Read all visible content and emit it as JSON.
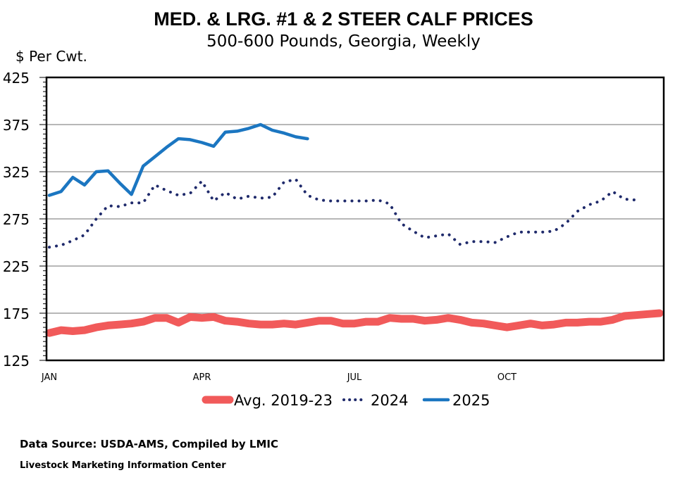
{
  "chart_data": {
    "type": "line",
    "title": "MED. & LRG. #1 & 2 STEER CALF PRICES",
    "subtitle": "500-600 Pounds, Georgia, Weekly",
    "ylabel": "$ Per Cwt.",
    "ylim": [
      125,
      425
    ],
    "yticks": [
      125,
      175,
      225,
      275,
      325,
      375,
      425
    ],
    "xlim": [
      1,
      53
    ],
    "xticks": [
      {
        "label": "JAN",
        "week": 1
      },
      {
        "label": "APR",
        "week": 14
      },
      {
        "label": "JUL",
        "week": 27
      },
      {
        "label": "OCT",
        "week": 40
      }
    ],
    "grid": true,
    "legend": "bottom",
    "series": [
      {
        "name": "Avg. 2019-23",
        "style": "thick-solid",
        "color": "#F15A5A",
        "x": [
          1,
          2,
          3,
          4,
          5,
          6,
          7,
          8,
          9,
          10,
          11,
          12,
          13,
          14,
          15,
          16,
          17,
          18,
          19,
          20,
          21,
          22,
          23,
          24,
          25,
          26,
          27,
          28,
          29,
          30,
          31,
          32,
          33,
          34,
          35,
          36,
          37,
          38,
          39,
          40,
          41,
          42,
          43,
          44,
          45,
          46,
          47,
          48,
          49,
          50,
          51,
          52,
          53
        ],
        "values": [
          154,
          157,
          156,
          157,
          160,
          162,
          163,
          164,
          166,
          170,
          170,
          165,
          171,
          170,
          171,
          167,
          166,
          164,
          163,
          163,
          164,
          163,
          165,
          167,
          167,
          164,
          164,
          166,
          166,
          170,
          169,
          169,
          167,
          168,
          170,
          168,
          165,
          164,
          162,
          160,
          162,
          164,
          162,
          163,
          165,
          165,
          166,
          166,
          168,
          172,
          173,
          174,
          175
        ]
      },
      {
        "name": "2024",
        "style": "dotted",
        "color": "#1F2A6B",
        "x": [
          1,
          2,
          3,
          4,
          5,
          6,
          7,
          8,
          9,
          10,
          11,
          12,
          13,
          14,
          15,
          16,
          17,
          18,
          19,
          20,
          21,
          22,
          23,
          24,
          25,
          26,
          27,
          28,
          29,
          30,
          31,
          32,
          33,
          34,
          35,
          36,
          37,
          38,
          39,
          40,
          41,
          42,
          43,
          44,
          45,
          46,
          47,
          48,
          49,
          50,
          51,
          52
        ],
        "values": [
          245,
          247,
          252,
          258,
          275,
          289,
          288,
          292,
          292,
          311,
          305,
          300,
          302,
          315,
          294,
          303,
          296,
          299,
          297,
          298,
          314,
          317,
          300,
          295,
          294,
          294,
          294,
          294,
          295,
          291,
          270,
          262,
          255,
          257,
          259,
          248,
          251,
          251,
          250,
          256,
          261,
          261,
          261,
          262,
          270,
          283,
          290,
          294,
          304,
          296,
          295,
          null
        ]
      },
      {
        "name": "2025",
        "style": "solid",
        "color": "#1B76C1",
        "x": [
          1,
          2,
          3,
          4,
          5,
          6,
          7,
          8,
          9,
          10,
          11,
          12,
          13,
          14,
          15,
          16,
          17,
          18,
          19,
          20,
          21,
          22,
          23
        ],
        "values": [
          300,
          304,
          319,
          311,
          325,
          326,
          313,
          301,
          331,
          341,
          351,
          360,
          359,
          356,
          352,
          367,
          368,
          371,
          375,
          369,
          366,
          362,
          360
        ]
      }
    ]
  },
  "footer": {
    "source": "Data Source:  USDA-AMS, Compiled by LMIC",
    "org": "Livestock Marketing Information Center"
  }
}
